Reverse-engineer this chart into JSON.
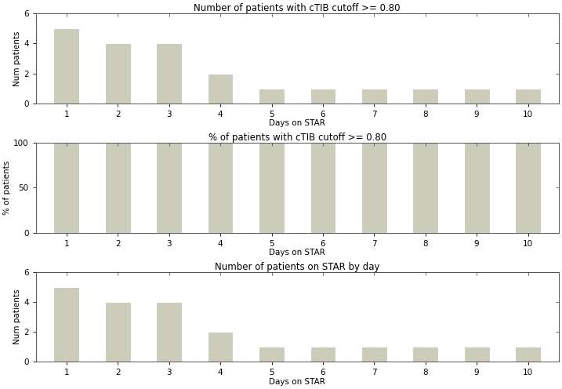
{
  "days": [
    1,
    2,
    3,
    4,
    5,
    6,
    7,
    8,
    9,
    10
  ],
  "num_patients_ctib": [
    5,
    4,
    4,
    2,
    1,
    1,
    1,
    1,
    1,
    1
  ],
  "pct_patients_ctib": [
    100,
    100,
    100,
    100,
    100,
    100,
    100,
    100,
    100,
    100
  ],
  "num_patients_star": [
    5,
    4,
    4,
    2,
    1,
    1,
    1,
    1,
    1,
    1
  ],
  "title1": "Number of patients with cTIB cutoff >= 0.80",
  "title2": "% of patients with cTIB cutoff >= 0.80",
  "title3": "Number of patients on STAR by day",
  "xlabel": "Days on STAR",
  "ylabel1": "Num patients",
  "ylabel2": "% of patients",
  "ylabel3": "Num patients",
  "ylim1": [
    0,
    6
  ],
  "ylim2": [
    0,
    100
  ],
  "ylim3": [
    0,
    6
  ],
  "yticks1": [
    0,
    2,
    4,
    6
  ],
  "yticks2": [
    0,
    50,
    100
  ],
  "yticks3": [
    0,
    2,
    4,
    6
  ],
  "bar_color": "#ccccbb",
  "bar_edge_color": "#ffffff",
  "bar_linewidth": 0.8,
  "figure_facecolor": "#ffffff",
  "axes_facecolor": "#ffffff",
  "title_fontsize": 8.5,
  "label_fontsize": 7.5,
  "tick_fontsize": 7.5,
  "bar_width": 0.5
}
